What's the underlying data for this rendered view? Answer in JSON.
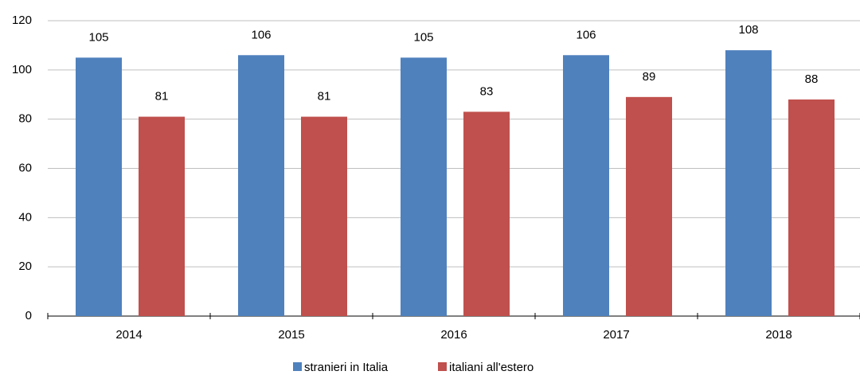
{
  "chart_data": {
    "type": "bar",
    "categories": [
      "2014",
      "2015",
      "2016",
      "2017",
      "2018"
    ],
    "series": [
      {
        "name": "stranieri in Italia",
        "color": "#4f81bd",
        "values": [
          105,
          106,
          105,
          106,
          108
        ]
      },
      {
        "name": "italiani all'estero",
        "color": "#c0504d",
        "values": [
          81,
          81,
          83,
          89,
          88
        ]
      }
    ],
    "ylim": [
      0,
      120
    ],
    "yticks": [
      0,
      20,
      40,
      60,
      80,
      100,
      120
    ],
    "grid": true,
    "legend": "bottom"
  }
}
